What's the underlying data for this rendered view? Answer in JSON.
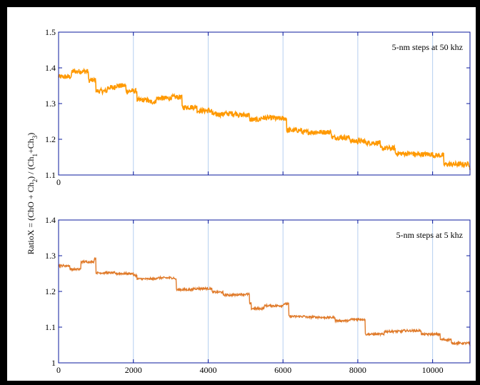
{
  "figure": {
    "ylabel_parts": [
      "RatioX = (ChO + Ch",
      "2",
      ") / (Ch",
      "1",
      "+Ch",
      "3",
      ")"
    ]
  },
  "chart_data": [
    {
      "type": "line",
      "annotation": "5-nm steps at 50 khz",
      "color": "#ff9900",
      "xlim": [
        0,
        11000
      ],
      "ylim": [
        1.1,
        1.5
      ],
      "xticks": [
        0
      ],
      "xtick_labels": [
        "0"
      ],
      "yticks": [
        1.1,
        1.2,
        1.3,
        1.4,
        1.5
      ],
      "ytick_labels": [
        "1.1",
        "1.2",
        "1.3",
        "1.4",
        "1.5"
      ],
      "xgrid": [
        2000,
        4000,
        6000,
        8000,
        10000
      ],
      "grid": true,
      "noise": 0.007,
      "steps": [
        [
          0,
          1.375
        ],
        [
          350,
          1.39
        ],
        [
          800,
          1.365
        ],
        [
          1000,
          1.335
        ],
        [
          1300,
          1.345
        ],
        [
          1500,
          1.35
        ],
        [
          1800,
          1.335
        ],
        [
          2100,
          1.31
        ],
        [
          2400,
          1.305
        ],
        [
          2600,
          1.315
        ],
        [
          3000,
          1.318
        ],
        [
          3300,
          1.29
        ],
        [
          3700,
          1.28
        ],
        [
          4100,
          1.27
        ],
        [
          4400,
          1.272
        ],
        [
          4800,
          1.268
        ],
        [
          5100,
          1.255
        ],
        [
          5400,
          1.26
        ],
        [
          5800,
          1.258
        ],
        [
          6100,
          1.225
        ],
        [
          6500,
          1.22
        ],
        [
          7000,
          1.22
        ],
        [
          7300,
          1.205
        ],
        [
          7800,
          1.195
        ],
        [
          8200,
          1.19
        ],
        [
          8600,
          1.175
        ],
        [
          9000,
          1.16
        ],
        [
          9500,
          1.158
        ],
        [
          10000,
          1.155
        ],
        [
          10300,
          1.13
        ],
        [
          10700,
          1.13
        ],
        [
          11000,
          1.12
        ]
      ]
    },
    {
      "type": "line",
      "annotation": "5-nm steps at 5 khz",
      "color": "#e07b2b",
      "xlim": [
        0,
        11000
      ],
      "ylim": [
        1.0,
        1.4
      ],
      "xticks": [
        0,
        2000,
        4000,
        6000,
        8000,
        10000
      ],
      "xtick_labels": [
        "0",
        "2000",
        "4000",
        "6000",
        "8000",
        "10000"
      ],
      "yticks": [
        1.0,
        1.1,
        1.2,
        1.3,
        1.4
      ],
      "ytick_labels": [
        "1",
        "1.1",
        "1.2",
        "1.3",
        "1.4"
      ],
      "xgrid": [
        2000,
        4000,
        6000,
        8000,
        10000
      ],
      "grid": true,
      "noise": 0.003,
      "steps": [
        [
          0,
          1.272
        ],
        [
          300,
          1.262
        ],
        [
          600,
          1.283
        ],
        [
          950,
          1.292
        ],
        [
          1000,
          1.252
        ],
        [
          1500,
          1.25
        ],
        [
          2000,
          1.245
        ],
        [
          2100,
          1.235
        ],
        [
          2600,
          1.238
        ],
        [
          3100,
          1.235
        ],
        [
          3150,
          1.205
        ],
        [
          3600,
          1.208
        ],
        [
          4100,
          1.198
        ],
        [
          4400,
          1.19
        ],
        [
          4800,
          1.192
        ],
        [
          5100,
          1.165
        ],
        [
          5150,
          1.152
        ],
        [
          5500,
          1.16
        ],
        [
          6000,
          1.165
        ],
        [
          6150,
          1.13
        ],
        [
          6600,
          1.128
        ],
        [
          7000,
          1.127
        ],
        [
          7400,
          1.118
        ],
        [
          7800,
          1.122
        ],
        [
          8200,
          1.08
        ],
        [
          8700,
          1.088
        ],
        [
          9200,
          1.09
        ],
        [
          9700,
          1.08
        ],
        [
          10200,
          1.065
        ],
        [
          10500,
          1.055
        ],
        [
          11000,
          1.045
        ]
      ]
    }
  ]
}
